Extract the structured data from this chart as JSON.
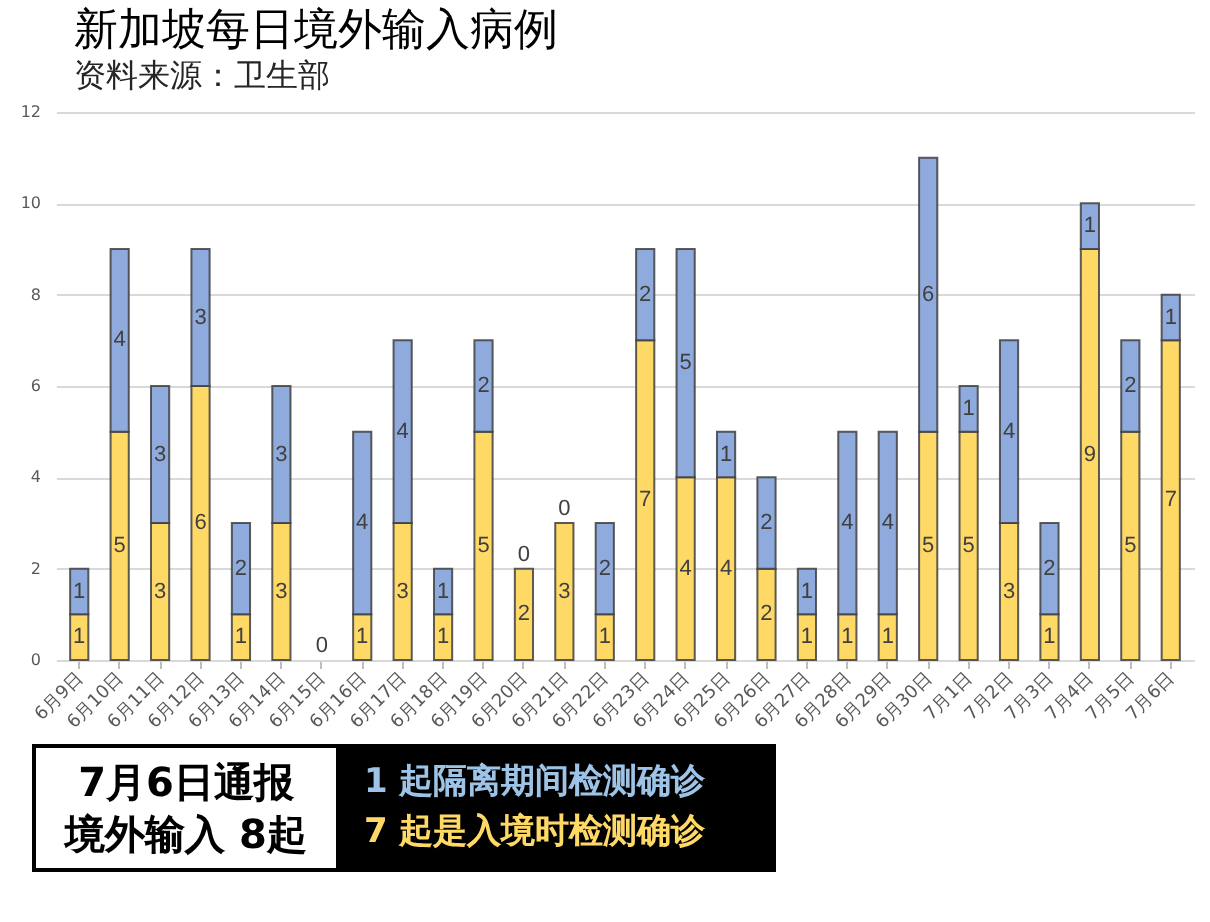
{
  "chart_data": {
    "type": "bar",
    "title": "新加坡每日境外输入病例",
    "subtitle": "资料来源：卫生部",
    "categories": [
      "6月9日",
      "6月10日",
      "6月11日",
      "6月12日",
      "6月13日",
      "6月14日",
      "6月15日",
      "6月16日",
      "6月17日",
      "6月18日",
      "6月19日",
      "6月20日",
      "6月21日",
      "6月22日",
      "6月23日",
      "6月24日",
      "6月25日",
      "6月26日",
      "6月27日",
      "6月28日",
      "6月29日",
      "6月30日",
      "7月1日",
      "7月2日",
      "7月3日",
      "7月4日",
      "7月5日",
      "7月6日"
    ],
    "series": [
      {
        "color": "#ffd966",
        "values": [
          1,
          5,
          3,
          6,
          1,
          3,
          0,
          1,
          3,
          1,
          5,
          2,
          3,
          1,
          7,
          4,
          4,
          2,
          1,
          1,
          1,
          5,
          5,
          3,
          1,
          9,
          5,
          7
        ]
      },
      {
        "color": "#8faadc",
        "values": [
          1,
          4,
          3,
          3,
          2,
          3,
          null,
          4,
          4,
          1,
          2,
          0,
          0,
          2,
          2,
          5,
          1,
          2,
          1,
          4,
          4,
          6,
          1,
          4,
          2,
          1,
          2,
          1
        ]
      }
    ],
    "stacked": true,
    "ylim": [
      0,
      12
    ],
    "yticks": [
      0,
      2,
      4,
      6,
      8,
      10,
      12
    ],
    "grid": "y",
    "data_labels": true,
    "annotations": [
      "7月6日通报",
      "境外输入 8起",
      "1 起隔离期间检测确诊",
      "7 起是入境时检测确诊"
    ]
  }
}
